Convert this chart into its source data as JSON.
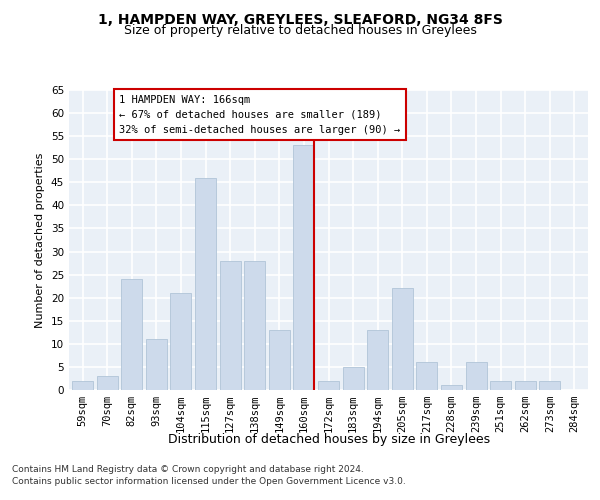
{
  "title": "1, HAMPDEN WAY, GREYLEES, SLEAFORD, NG34 8FS",
  "subtitle": "Size of property relative to detached houses in Greylees",
  "xlabel": "Distribution of detached houses by size in Greylees",
  "ylabel": "Number of detached properties",
  "bar_labels": [
    "59sqm",
    "70sqm",
    "82sqm",
    "93sqm",
    "104sqm",
    "115sqm",
    "127sqm",
    "138sqm",
    "149sqm",
    "160sqm",
    "172sqm",
    "183sqm",
    "194sqm",
    "205sqm",
    "217sqm",
    "228sqm",
    "239sqm",
    "251sqm",
    "262sqm",
    "273sqm",
    "284sqm"
  ],
  "bar_values": [
    2,
    3,
    24,
    11,
    21,
    46,
    28,
    28,
    13,
    53,
    2,
    5,
    13,
    22,
    6,
    1,
    6,
    2,
    2,
    2,
    0
  ],
  "bar_color": "#cddaeb",
  "bar_edge_color": "#b0c4d8",
  "highlight_line_color": "#cc0000",
  "annotation_text": "1 HAMPDEN WAY: 166sqm\n← 67% of detached houses are smaller (189)\n32% of semi-detached houses are larger (90) →",
  "annotation_box_color": "#ffffff",
  "annotation_box_edge_color": "#cc0000",
  "ylim": [
    0,
    65
  ],
  "yticks": [
    0,
    5,
    10,
    15,
    20,
    25,
    30,
    35,
    40,
    45,
    50,
    55,
    60,
    65
  ],
  "background_color": "#eaf0f7",
  "grid_color": "#ffffff",
  "footer_line1": "Contains HM Land Registry data © Crown copyright and database right 2024.",
  "footer_line2": "Contains public sector information licensed under the Open Government Licence v3.0.",
  "title_fontsize": 10,
  "subtitle_fontsize": 9,
  "ylabel_fontsize": 8,
  "xlabel_fontsize": 9,
  "tick_fontsize": 7.5,
  "footer_fontsize": 6.5,
  "annotation_fontsize": 7.5
}
